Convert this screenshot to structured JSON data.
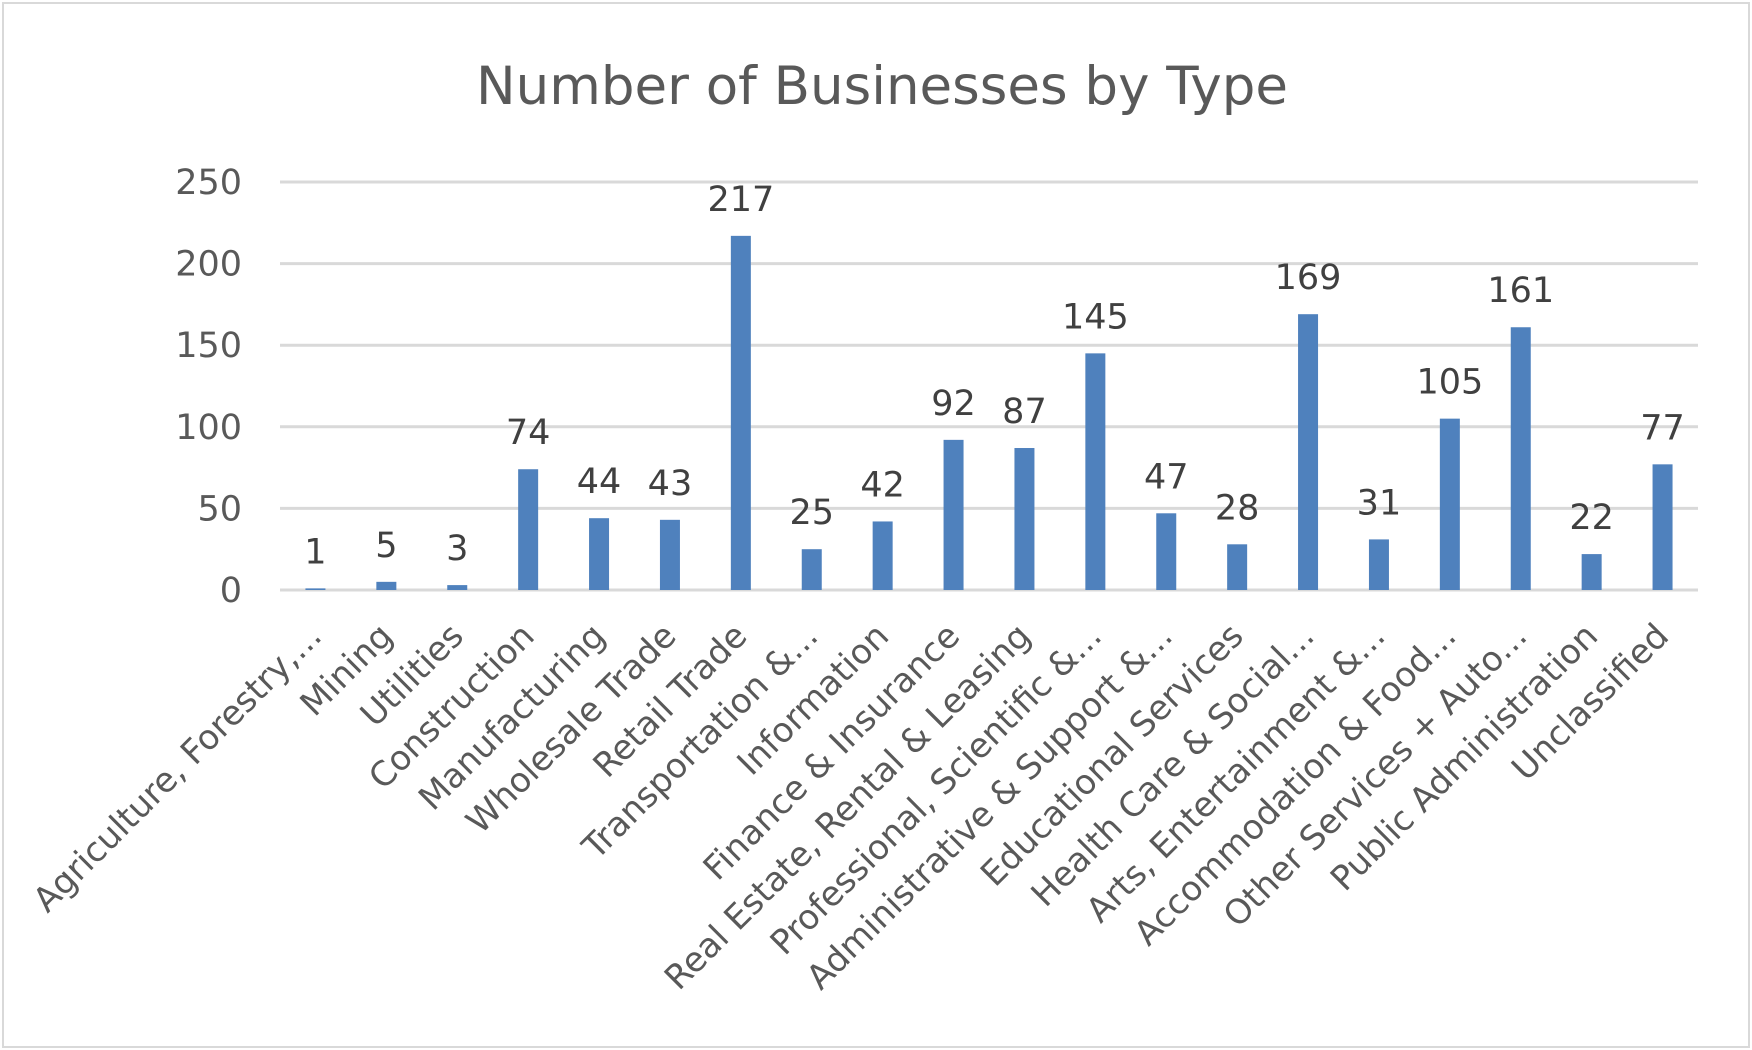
{
  "chart_data": {
    "type": "bar",
    "title": "Number of Businesses by Type",
    "xlabel": "",
    "ylabel": "",
    "ylim": [
      0,
      250
    ],
    "yticks": [
      0,
      50,
      100,
      150,
      200,
      250
    ],
    "grid": true,
    "legend": "none",
    "bar_color": "#4f81bd",
    "categories": [
      "Agriculture, Forestry,...",
      "Mining",
      "Utilities",
      "Construction",
      "Manufacturing",
      "Wholesale Trade",
      "Retail Trade",
      "Transportation &...",
      "Information",
      "Finance & Insurance",
      "Real Estate, Rental & Leasing",
      "Professional, Scientific &...",
      "Administrative & Support &...",
      "Educational Services",
      "Health Care & Social...",
      "Arts, Entertainment &...",
      "Accommodation & Food...",
      "Other Services + Auto...",
      "Public Administration",
      "Unclassified"
    ],
    "values": [
      1,
      5,
      3,
      74,
      44,
      43,
      217,
      25,
      42,
      92,
      87,
      145,
      47,
      28,
      169,
      31,
      105,
      161,
      22,
      77
    ]
  }
}
